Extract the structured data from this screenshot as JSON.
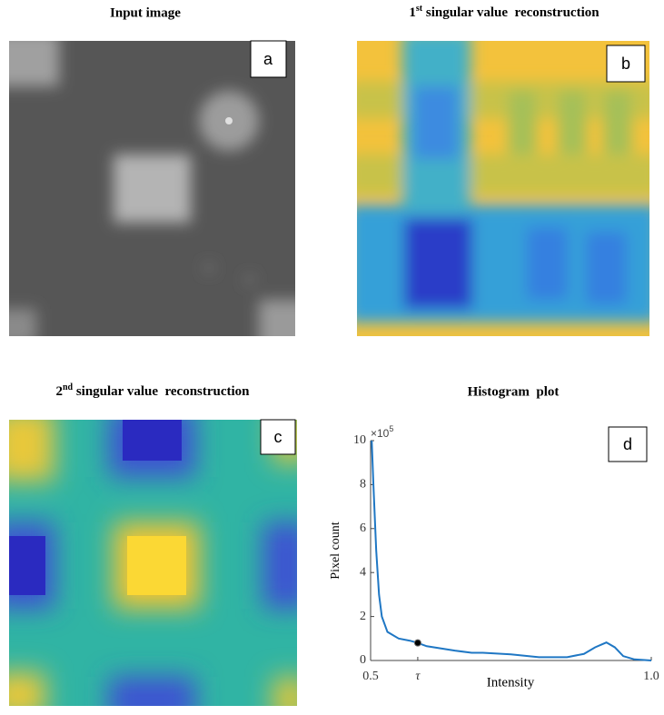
{
  "panels": [
    {
      "title": "Input  image",
      "label": "a"
    },
    {
      "title_number": "1",
      "title_ordinal": "st",
      "title_rest": " singular value  reconstruction",
      "label": "b"
    },
    {
      "title_number": "2",
      "title_ordinal": "nd",
      "title_rest": " singular value  reconstruction",
      "label": "c"
    },
    {
      "label": "d"
    }
  ],
  "chart_data": {
    "type": "line",
    "title": "Histogram  plot",
    "x_label": "Intensity",
    "y_label": "Pixel count",
    "y_multiplier": "×10",
    "y_multiplier_power": "5",
    "xlim": [
      0.5,
      1.0
    ],
    "xticks": [
      0.5,
      {
        "value": 0.584,
        "label": "τ"
      },
      {
        "value": 1.0,
        "label": "1.0"
      }
    ],
    "ylim": [
      0,
      10
    ],
    "yticks": [
      0,
      2,
      4,
      6,
      8,
      10
    ],
    "x": [
      0.502,
      0.505,
      0.51,
      0.515,
      0.52,
      0.53,
      0.55,
      0.57,
      0.584,
      0.6,
      0.65,
      0.68,
      0.7,
      0.75,
      0.8,
      0.85,
      0.88,
      0.9,
      0.92,
      0.935,
      0.95,
      0.97,
      1.0
    ],
    "series": [
      {
        "color": "#1f77c4",
        "values": [
          10,
          8,
          5,
          3,
          2,
          1.3,
          1.0,
          0.9,
          0.8,
          0.65,
          0.45,
          0.35,
          0.35,
          0.28,
          0.15,
          0.15,
          0.3,
          0.6,
          0.82,
          0.6,
          0.2,
          0.05,
          0.0
        ]
      }
    ],
    "marker": {
      "x": 0.584,
      "y": 0.8,
      "color": "#000000"
    }
  }
}
